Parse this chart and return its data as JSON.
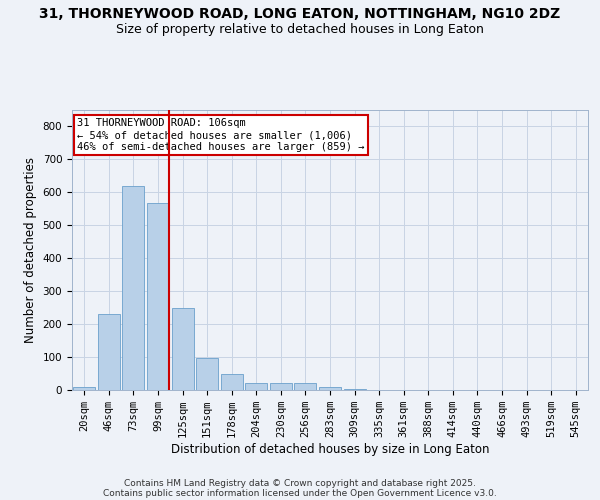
{
  "title_line1": "31, THORNEYWOOD ROAD, LONG EATON, NOTTINGHAM, NG10 2DZ",
  "title_line2": "Size of property relative to detached houses in Long Eaton",
  "xlabel": "Distribution of detached houses by size in Long Eaton",
  "ylabel": "Number of detached properties",
  "categories": [
    "20sqm",
    "46sqm",
    "73sqm",
    "99sqm",
    "125sqm",
    "151sqm",
    "178sqm",
    "204sqm",
    "230sqm",
    "256sqm",
    "283sqm",
    "309sqm",
    "335sqm",
    "361sqm",
    "388sqm",
    "414sqm",
    "440sqm",
    "466sqm",
    "493sqm",
    "519sqm",
    "545sqm"
  ],
  "values": [
    8,
    232,
    620,
    568,
    250,
    97,
    50,
    20,
    20,
    22,
    8,
    3,
    0,
    0,
    0,
    0,
    0,
    0,
    0,
    0,
    0
  ],
  "bar_color": "#b8d0e8",
  "bar_edge_color": "#6aa0cc",
  "vline_color": "#cc0000",
  "annotation_text": "31 THORNEYWOOD ROAD: 106sqm\n← 54% of detached houses are smaller (1,006)\n46% of semi-detached houses are larger (859) →",
  "annotation_box_edgecolor": "#cc0000",
  "background_color": "#eef2f8",
  "grid_color": "#c8d4e4",
  "ylim": [
    0,
    850
  ],
  "yticks": [
    0,
    100,
    200,
    300,
    400,
    500,
    600,
    700,
    800
  ],
  "footnote_line1": "Contains HM Land Registry data © Crown copyright and database right 2025.",
  "footnote_line2": "Contains public sector information licensed under the Open Government Licence v3.0.",
  "title_fontsize": 10,
  "subtitle_fontsize": 9,
  "axis_label_fontsize": 8.5,
  "tick_fontsize": 7.5,
  "annotation_fontsize": 7.5,
  "footnote_fontsize": 6.5
}
